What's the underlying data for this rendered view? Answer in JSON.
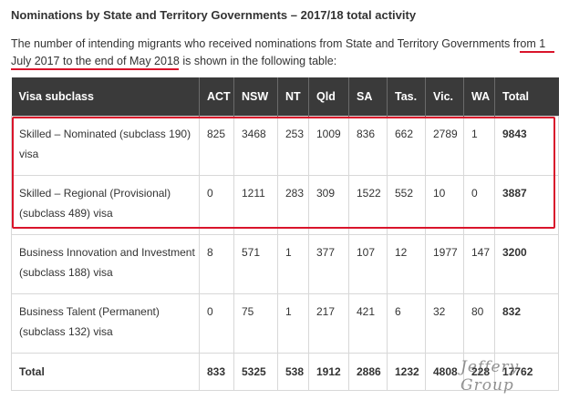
{
  "heading": "Nominations by State and Territory Governments – 2017/18 total activity",
  "intro": {
    "before": "The number of intending migrants who received nominations from State and Territory Governments ",
    "highlight": "from 1 July 2017 to the end of May 2018",
    "after": " is shown in the following table:"
  },
  "table": {
    "columns": [
      "Visa subclass",
      "ACT",
      "NSW",
      "NT",
      "Qld",
      "SA",
      "Tas.",
      "Vic.",
      "WA",
      "Total"
    ],
    "rows": [
      {
        "label": "Skilled – Nominated (subclass 190) visa",
        "values": [
          "825",
          "3468",
          "253",
          "1009",
          "836",
          "662",
          "2789",
          "1"
        ],
        "total": "9843"
      },
      {
        "label": "Skilled – Regional (Provisional) (subclass 489) visa",
        "values": [
          "0",
          "1211",
          "283",
          "309",
          "1522",
          "552",
          "10",
          "0"
        ],
        "total": "3887"
      },
      {
        "label": "Business Innovation and Investment (subclass 188) visa",
        "values": [
          "8",
          "571",
          "1",
          "377",
          "107",
          "12",
          "1977",
          "147"
        ],
        "total": "3200"
      },
      {
        "label": "Business Talent (Permanent) (subclass 132) visa",
        "values": [
          "0",
          "75",
          "1",
          "217",
          "421",
          "6",
          "32",
          "80"
        ],
        "total": "832"
      }
    ],
    "total_row": {
      "label": "Total",
      "values": [
        "833",
        "5325",
        "538",
        "1912",
        "2886",
        "1232",
        "4808",
        "228"
      ],
      "total": "17762"
    }
  },
  "watermark": "Jeffery Group",
  "colors": {
    "header_bg": "#3a3a3a",
    "highlight": "#d9142b"
  }
}
